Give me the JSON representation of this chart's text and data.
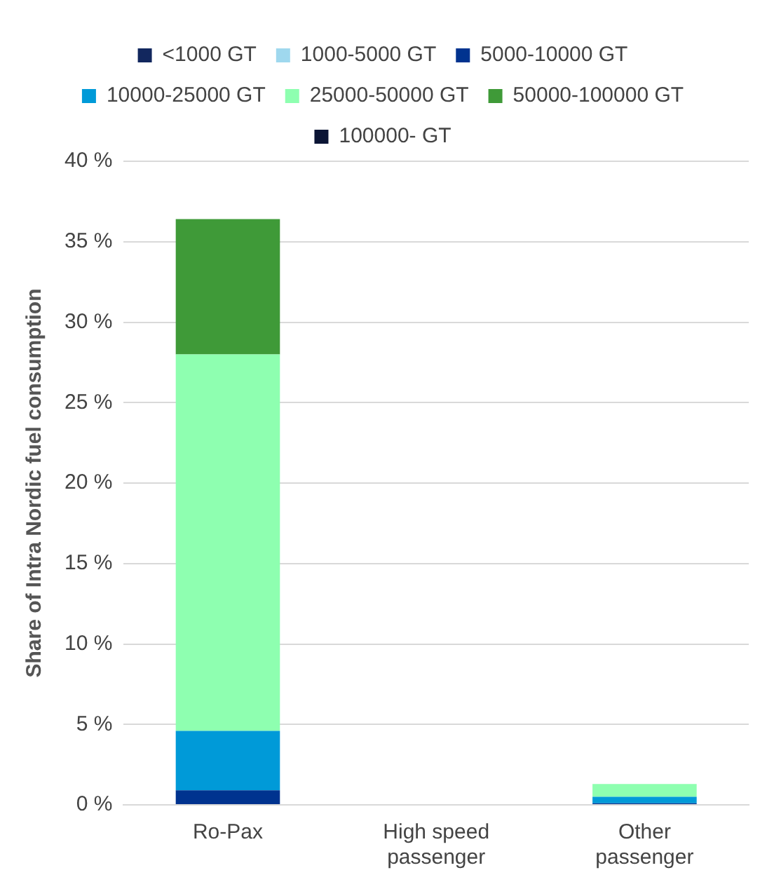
{
  "chart_data": {
    "type": "bar",
    "stacked": true,
    "ylabel": "Share of Intra Nordic fuel consumption",
    "categories": [
      "Ro-Pax",
      "High speed passenger",
      "Other passenger"
    ],
    "series": [
      {
        "name": "<1000 GT",
        "color": "#12275e",
        "values": [
          0,
          0,
          0
        ]
      },
      {
        "name": "1000-5000 GT",
        "color": "#9fd8ee",
        "values": [
          0,
          0,
          0
        ]
      },
      {
        "name": "5000-10000 GT",
        "color": "#00338f",
        "values": [
          0.9,
          0,
          0.1
        ]
      },
      {
        "name": "10000-25000 GT",
        "color": "#009ad8",
        "values": [
          3.7,
          0,
          0.4
        ]
      },
      {
        "name": "25000-50000 GT",
        "color": "#8effb0",
        "values": [
          23.4,
          0,
          0.8
        ]
      },
      {
        "name": "50000-100000 GT",
        "color": "#3f9a38",
        "values": [
          8.4,
          0,
          0
        ]
      },
      {
        "name": "100000- GT",
        "color": "#0b1535",
        "values": [
          0,
          0,
          0
        ]
      }
    ],
    "ylim": [
      0,
      40
    ],
    "yticks": [
      {
        "value": 0,
        "label": "0 %"
      },
      {
        "value": 5,
        "label": "5 %"
      },
      {
        "value": 10,
        "label": "10 %"
      },
      {
        "value": 15,
        "label": "15 %"
      },
      {
        "value": 20,
        "label": "20 %"
      },
      {
        "value": 25,
        "label": "25 %"
      },
      {
        "value": 30,
        "label": "30 %"
      },
      {
        "value": 35,
        "label": "35 %"
      },
      {
        "value": 40,
        "label": "40 %"
      }
    ],
    "grid": "y",
    "legend": "top"
  }
}
